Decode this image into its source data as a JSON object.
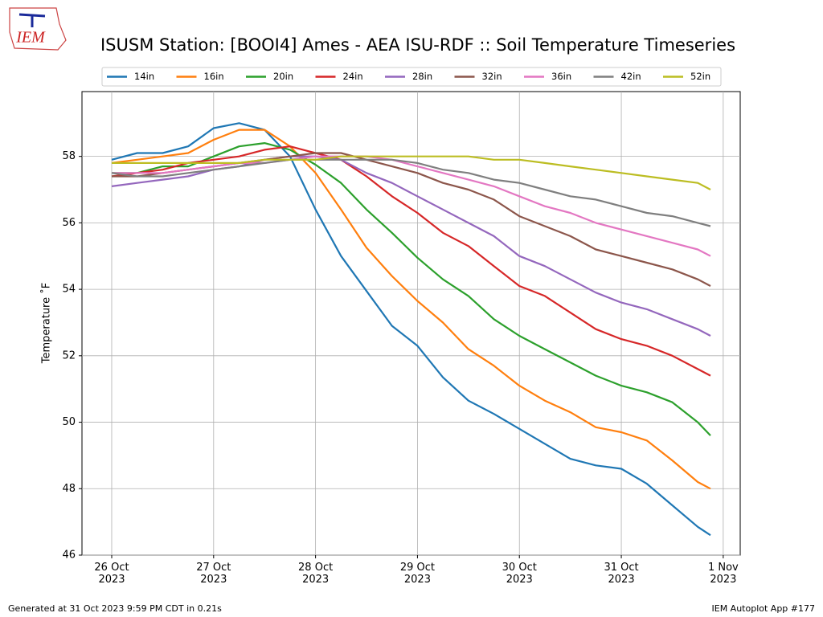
{
  "logo": "IEM",
  "footer_left": "Generated at 31 Oct 2023 9:59 PM CDT in 0.21s",
  "footer_right": "IEM Autoplot App #177",
  "chart_data": {
    "type": "line",
    "title": "ISUSM Station: [BOOI4] Ames - AEA ISU-RDF :: Soil Temperature Timeseries",
    "y_label": "Temperature ˚F",
    "x": [
      "2023-10-26 00:00",
      "2023-10-26 06:00",
      "2023-10-26 12:00",
      "2023-10-26 18:00",
      "2023-10-27 00:00",
      "2023-10-27 06:00",
      "2023-10-27 12:00",
      "2023-10-27 18:00",
      "2023-10-28 00:00",
      "2023-10-28 06:00",
      "2023-10-28 12:00",
      "2023-10-28 18:00",
      "2023-10-29 00:00",
      "2023-10-29 06:00",
      "2023-10-29 12:00",
      "2023-10-29 18:00",
      "2023-10-30 00:00",
      "2023-10-30 06:00",
      "2023-10-30 12:00",
      "2023-10-30 18:00",
      "2023-10-31 00:00",
      "2023-10-31 06:00",
      "2023-10-31 12:00",
      "2023-10-31 18:00",
      "2023-10-31 21:00"
    ],
    "xlim": [
      "2023-10-25 17:00",
      "2023-11-01 04:00"
    ],
    "xticks": [
      {
        "value": "2023-10-26 00:00",
        "label": "26 Oct 2023"
      },
      {
        "value": "2023-10-27 00:00",
        "label": "27 Oct 2023"
      },
      {
        "value": "2023-10-28 00:00",
        "label": "28 Oct 2023"
      },
      {
        "value": "2023-10-29 00:00",
        "label": "29 Oct 2023"
      },
      {
        "value": "2023-10-30 00:00",
        "label": "30 Oct 2023"
      },
      {
        "value": "2023-10-31 00:00",
        "label": "31 Oct 2023"
      },
      {
        "value": "2023-11-01 00:00",
        "label": "1 Nov 2023"
      }
    ],
    "ylim": [
      46,
      59.95
    ],
    "yticks": [
      46,
      48,
      50,
      52,
      54,
      56,
      58
    ],
    "grid": true,
    "legend": "top",
    "series": [
      {
        "name": "14in",
        "color": "#1f77b4",
        "values": [
          57.9,
          58.1,
          58.1,
          58.3,
          58.85,
          59.0,
          58.8,
          58.0,
          56.4,
          55.0,
          53.95,
          52.9,
          52.3,
          51.35,
          50.65,
          50.25,
          49.8,
          49.35,
          48.9,
          48.7,
          48.6,
          48.15,
          47.5,
          46.85,
          46.6
        ]
      },
      {
        "name": "16in",
        "color": "#ff7f0e",
        "values": [
          57.8,
          57.9,
          58.0,
          58.1,
          58.5,
          58.8,
          58.8,
          58.3,
          57.5,
          56.4,
          55.25,
          54.4,
          53.65,
          53.0,
          52.2,
          51.7,
          51.1,
          50.65,
          50.3,
          49.85,
          49.7,
          49.45,
          48.85,
          48.2,
          48.0
        ]
      },
      {
        "name": "20in",
        "color": "#2ca02c",
        "values": [
          57.5,
          57.5,
          57.7,
          57.7,
          58.0,
          58.3,
          58.4,
          58.2,
          57.75,
          57.2,
          56.4,
          55.7,
          54.95,
          54.3,
          53.8,
          53.1,
          52.6,
          52.2,
          51.8,
          51.4,
          51.1,
          50.9,
          50.6,
          50.0,
          49.6
        ]
      },
      {
        "name": "24in",
        "color": "#d62728",
        "values": [
          57.4,
          57.5,
          57.6,
          57.8,
          57.9,
          58.0,
          58.2,
          58.3,
          58.1,
          57.9,
          57.4,
          56.8,
          56.3,
          55.7,
          55.3,
          54.7,
          54.1,
          53.8,
          53.3,
          52.8,
          52.5,
          52.3,
          52.0,
          51.6,
          51.4
        ]
      },
      {
        "name": "28in",
        "color": "#9467bd",
        "values": [
          57.1,
          57.2,
          57.3,
          57.4,
          57.6,
          57.7,
          57.9,
          58.0,
          58.0,
          57.9,
          57.5,
          57.2,
          56.8,
          56.4,
          56.0,
          55.6,
          55.0,
          54.7,
          54.3,
          53.9,
          53.6,
          53.4,
          53.1,
          52.8,
          52.6
        ]
      },
      {
        "name": "32in",
        "color": "#8c564b",
        "values": [
          57.4,
          57.4,
          57.5,
          57.6,
          57.7,
          57.8,
          57.9,
          58.0,
          58.1,
          58.1,
          57.9,
          57.7,
          57.5,
          57.2,
          57.0,
          56.7,
          56.2,
          55.9,
          55.6,
          55.2,
          55.0,
          54.8,
          54.6,
          54.3,
          54.1
        ]
      },
      {
        "name": "36in",
        "color": "#e377c2",
        "values": [
          57.5,
          57.5,
          57.5,
          57.6,
          57.7,
          57.8,
          57.8,
          57.9,
          58.0,
          58.0,
          58.0,
          57.9,
          57.7,
          57.5,
          57.3,
          57.1,
          56.8,
          56.5,
          56.3,
          56.0,
          55.8,
          55.6,
          55.4,
          55.2,
          55.0
        ]
      },
      {
        "name": "42in",
        "color": "#7f7f7f",
        "values": [
          57.5,
          57.4,
          57.4,
          57.5,
          57.6,
          57.7,
          57.8,
          57.9,
          57.9,
          57.9,
          57.9,
          57.9,
          57.8,
          57.6,
          57.5,
          57.3,
          57.2,
          57.0,
          56.8,
          56.7,
          56.5,
          56.3,
          56.2,
          56.0,
          55.9
        ]
      },
      {
        "name": "52in",
        "color": "#bcbd22",
        "values": [
          57.8,
          57.8,
          57.8,
          57.8,
          57.8,
          57.8,
          57.9,
          57.9,
          57.9,
          58.0,
          58.0,
          58.0,
          58.0,
          58.0,
          58.0,
          57.9,
          57.9,
          57.8,
          57.7,
          57.6,
          57.5,
          57.4,
          57.3,
          57.2,
          57.0
        ]
      }
    ]
  }
}
